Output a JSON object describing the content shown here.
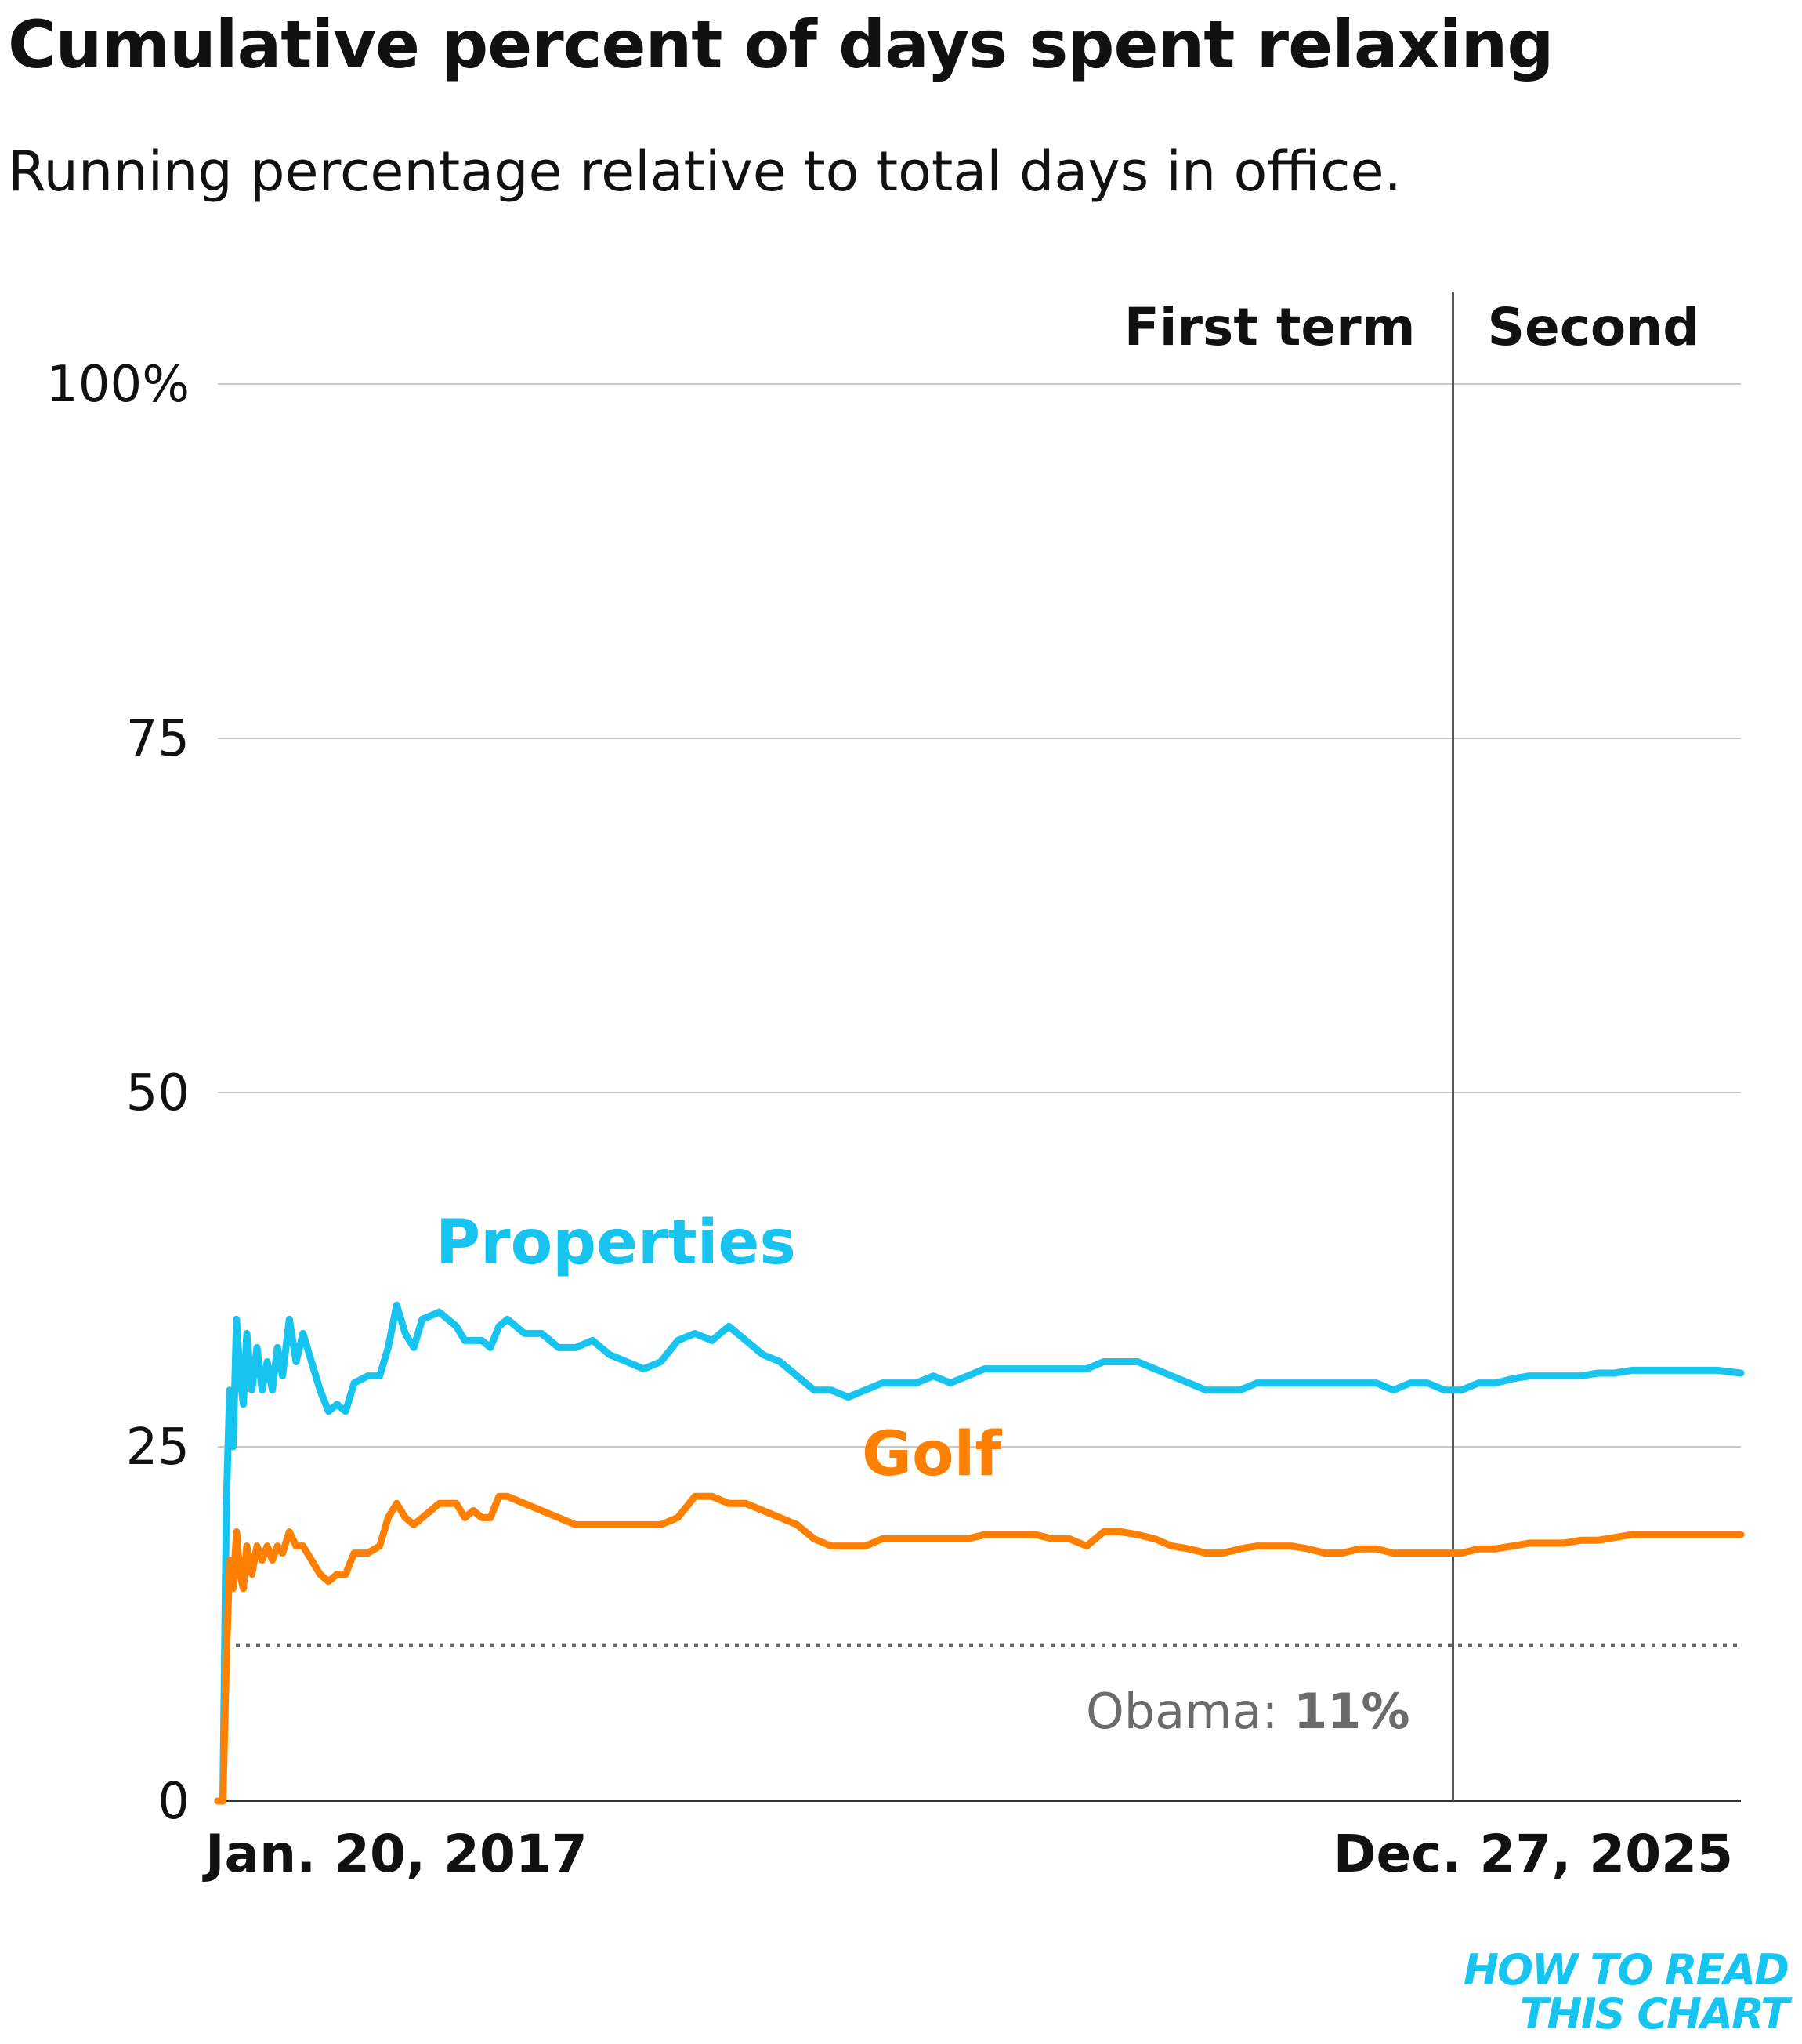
{
  "chart_data": {
    "type": "line",
    "title": "Cumulative percent of days spent relaxing",
    "subtitle": "Running percentage relative to total days in office.",
    "x_start_label": "Jan. 20, 2017",
    "x_end_label": "Dec. 27, 2025",
    "x_unit": "years since Jan. 20, 2017",
    "xlim": [
      0,
      8.94
    ],
    "ylim": [
      0,
      100
    ],
    "yticks": [
      {
        "value": 0,
        "label": "0"
      },
      {
        "value": 25,
        "label": "25"
      },
      {
        "value": 50,
        "label": "50"
      },
      {
        "value": 75,
        "label": "75"
      },
      {
        "value": 100,
        "label": "100%"
      }
    ],
    "term_divider_x": 7.25,
    "term_labels": {
      "first": "First term",
      "second": "Second"
    },
    "reference": {
      "value": 11,
      "label_prefix": "Obama: ",
      "label_value": "11%"
    },
    "series": [
      {
        "name": "Properties",
        "color": "#17c4f0",
        "points": [
          [
            0.0,
            0
          ],
          [
            0.03,
            0
          ],
          [
            0.05,
            21
          ],
          [
            0.07,
            29
          ],
          [
            0.09,
            25
          ],
          [
            0.11,
            34
          ],
          [
            0.13,
            30
          ],
          [
            0.15,
            28
          ],
          [
            0.17,
            33
          ],
          [
            0.2,
            29
          ],
          [
            0.23,
            32
          ],
          [
            0.26,
            29
          ],
          [
            0.29,
            31
          ],
          [
            0.32,
            29
          ],
          [
            0.35,
            32
          ],
          [
            0.38,
            30
          ],
          [
            0.42,
            34
          ],
          [
            0.46,
            31
          ],
          [
            0.5,
            33
          ],
          [
            0.55,
            31
          ],
          [
            0.6,
            29
          ],
          [
            0.65,
            27.5
          ],
          [
            0.7,
            28
          ],
          [
            0.75,
            27.5
          ],
          [
            0.8,
            29.5
          ],
          [
            0.88,
            30
          ],
          [
            0.95,
            30
          ],
          [
            1.0,
            32
          ],
          [
            1.05,
            35
          ],
          [
            1.1,
            33
          ],
          [
            1.15,
            32
          ],
          [
            1.2,
            34
          ],
          [
            1.3,
            34.5
          ],
          [
            1.4,
            33.5
          ],
          [
            1.45,
            32.5
          ],
          [
            1.55,
            32.5
          ],
          [
            1.6,
            32
          ],
          [
            1.65,
            33.5
          ],
          [
            1.7,
            34
          ],
          [
            1.8,
            33
          ],
          [
            1.9,
            33
          ],
          [
            2.0,
            32
          ],
          [
            2.1,
            32
          ],
          [
            2.2,
            32.5
          ],
          [
            2.3,
            31.5
          ],
          [
            2.4,
            31
          ],
          [
            2.5,
            30.5
          ],
          [
            2.6,
            31
          ],
          [
            2.7,
            32.5
          ],
          [
            2.8,
            33
          ],
          [
            2.9,
            32.5
          ],
          [
            3.0,
            33.5
          ],
          [
            3.1,
            32.5
          ],
          [
            3.2,
            31.5
          ],
          [
            3.3,
            31
          ],
          [
            3.4,
            30
          ],
          [
            3.5,
            29
          ],
          [
            3.6,
            29
          ],
          [
            3.7,
            28.5
          ],
          [
            3.8,
            29
          ],
          [
            3.9,
            29.5
          ],
          [
            4.0,
            29.5
          ],
          [
            4.1,
            29.5
          ],
          [
            4.2,
            30
          ],
          [
            4.3,
            29.5
          ],
          [
            4.4,
            30
          ],
          [
            4.5,
            30.5
          ],
          [
            4.6,
            30.5
          ],
          [
            4.7,
            30.5
          ],
          [
            4.8,
            30.5
          ],
          [
            4.9,
            30.5
          ],
          [
            5.0,
            30.5
          ],
          [
            5.1,
            30.5
          ],
          [
            5.2,
            31
          ],
          [
            5.3,
            31
          ],
          [
            5.4,
            31
          ],
          [
            5.5,
            30.5
          ],
          [
            5.6,
            30
          ],
          [
            5.7,
            29.5
          ],
          [
            5.8,
            29
          ],
          [
            5.9,
            29
          ],
          [
            6.0,
            29
          ],
          [
            6.1,
            29.5
          ],
          [
            6.2,
            29.5
          ],
          [
            6.3,
            29.5
          ],
          [
            6.4,
            29.5
          ],
          [
            6.5,
            29.5
          ],
          [
            6.6,
            29.5
          ],
          [
            6.7,
            29.5
          ],
          [
            6.8,
            29.5
          ],
          [
            6.9,
            29
          ],
          [
            7.0,
            29.5
          ],
          [
            7.1,
            29.5
          ],
          [
            7.2,
            29
          ],
          [
            7.3,
            29
          ],
          [
            7.4,
            29.5
          ],
          [
            7.5,
            29.5
          ],
          [
            7.6,
            29.8
          ],
          [
            7.7,
            30
          ],
          [
            7.8,
            30
          ],
          [
            7.9,
            30
          ],
          [
            8.0,
            30
          ],
          [
            8.1,
            30.2
          ],
          [
            8.2,
            30.2
          ],
          [
            8.3,
            30.4
          ],
          [
            8.4,
            30.4
          ],
          [
            8.5,
            30.4
          ],
          [
            8.6,
            30.4
          ],
          [
            8.7,
            30.4
          ],
          [
            8.8,
            30.4
          ],
          [
            8.94,
            30.2
          ]
        ]
      },
      {
        "name": "Golf",
        "color": "#ff8000",
        "points": [
          [
            0.0,
            0
          ],
          [
            0.03,
            0
          ],
          [
            0.05,
            10
          ],
          [
            0.07,
            17
          ],
          [
            0.09,
            15
          ],
          [
            0.11,
            19
          ],
          [
            0.13,
            16
          ],
          [
            0.15,
            15
          ],
          [
            0.17,
            18
          ],
          [
            0.2,
            16
          ],
          [
            0.23,
            18
          ],
          [
            0.26,
            17
          ],
          [
            0.29,
            18
          ],
          [
            0.32,
            17
          ],
          [
            0.35,
            18
          ],
          [
            0.38,
            17.5
          ],
          [
            0.42,
            19
          ],
          [
            0.46,
            18
          ],
          [
            0.5,
            18
          ],
          [
            0.55,
            17
          ],
          [
            0.6,
            16
          ],
          [
            0.65,
            15.5
          ],
          [
            0.7,
            16
          ],
          [
            0.75,
            16
          ],
          [
            0.8,
            17.5
          ],
          [
            0.88,
            17.5
          ],
          [
            0.95,
            18
          ],
          [
            1.0,
            20
          ],
          [
            1.05,
            21
          ],
          [
            1.1,
            20
          ],
          [
            1.15,
            19.5
          ],
          [
            1.2,
            20
          ],
          [
            1.3,
            21
          ],
          [
            1.4,
            21
          ],
          [
            1.45,
            20
          ],
          [
            1.5,
            20.5
          ],
          [
            1.55,
            20
          ],
          [
            1.6,
            20
          ],
          [
            1.65,
            21.5
          ],
          [
            1.7,
            21.5
          ],
          [
            1.8,
            21
          ],
          [
            1.9,
            20.5
          ],
          [
            2.0,
            20
          ],
          [
            2.1,
            19.5
          ],
          [
            2.2,
            19.5
          ],
          [
            2.3,
            19.5
          ],
          [
            2.4,
            19.5
          ],
          [
            2.5,
            19.5
          ],
          [
            2.6,
            19.5
          ],
          [
            2.7,
            20
          ],
          [
            2.8,
            21.5
          ],
          [
            2.9,
            21.5
          ],
          [
            3.0,
            21
          ],
          [
            3.1,
            21
          ],
          [
            3.2,
            20.5
          ],
          [
            3.3,
            20
          ],
          [
            3.4,
            19.5
          ],
          [
            3.5,
            18.5
          ],
          [
            3.6,
            18
          ],
          [
            3.7,
            18
          ],
          [
            3.8,
            18
          ],
          [
            3.9,
            18.5
          ],
          [
            4.0,
            18.5
          ],
          [
            4.1,
            18.5
          ],
          [
            4.2,
            18.5
          ],
          [
            4.3,
            18.5
          ],
          [
            4.4,
            18.5
          ],
          [
            4.5,
            18.8
          ],
          [
            4.6,
            18.8
          ],
          [
            4.7,
            18.8
          ],
          [
            4.8,
            18.8
          ],
          [
            4.9,
            18.5
          ],
          [
            5.0,
            18.5
          ],
          [
            5.1,
            18
          ],
          [
            5.2,
            19
          ],
          [
            5.3,
            19
          ],
          [
            5.4,
            18.8
          ],
          [
            5.5,
            18.5
          ],
          [
            5.6,
            18
          ],
          [
            5.7,
            17.8
          ],
          [
            5.8,
            17.5
          ],
          [
            5.9,
            17.5
          ],
          [
            6.0,
            17.8
          ],
          [
            6.1,
            18
          ],
          [
            6.2,
            18
          ],
          [
            6.3,
            18
          ],
          [
            6.4,
            17.8
          ],
          [
            6.5,
            17.5
          ],
          [
            6.6,
            17.5
          ],
          [
            6.7,
            17.8
          ],
          [
            6.8,
            17.8
          ],
          [
            6.9,
            17.5
          ],
          [
            7.0,
            17.5
          ],
          [
            7.1,
            17.5
          ],
          [
            7.2,
            17.5
          ],
          [
            7.3,
            17.5
          ],
          [
            7.4,
            17.8
          ],
          [
            7.5,
            17.8
          ],
          [
            7.6,
            18
          ],
          [
            7.7,
            18.2
          ],
          [
            7.8,
            18.2
          ],
          [
            7.9,
            18.2
          ],
          [
            8.0,
            18.4
          ],
          [
            8.1,
            18.4
          ],
          [
            8.2,
            18.6
          ],
          [
            8.3,
            18.8
          ],
          [
            8.4,
            18.8
          ],
          [
            8.5,
            18.8
          ],
          [
            8.6,
            18.8
          ],
          [
            8.7,
            18.8
          ],
          [
            8.8,
            18.8
          ],
          [
            8.94,
            18.8
          ]
        ]
      }
    ]
  },
  "logo": {
    "line1": "HOW TO READ",
    "line2": "THIS CHART",
    "color": "#17c4f0"
  }
}
